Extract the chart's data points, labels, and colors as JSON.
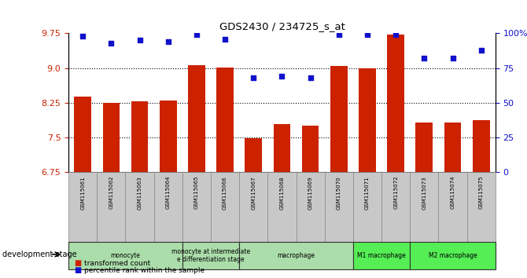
{
  "title": "GDS2430 / 234725_s_at",
  "samples": [
    "GSM115061",
    "GSM115062",
    "GSM115063",
    "GSM115064",
    "GSM115065",
    "GSM115066",
    "GSM115067",
    "GSM115068",
    "GSM115069",
    "GSM115070",
    "GSM115071",
    "GSM115072",
    "GSM115073",
    "GSM115074",
    "GSM115075"
  ],
  "bar_values": [
    8.38,
    8.25,
    8.28,
    8.3,
    9.07,
    9.02,
    7.48,
    7.8,
    7.75,
    9.05,
    9.0,
    9.72,
    7.82,
    7.82,
    7.88
  ],
  "dot_values": [
    98,
    93,
    95,
    94,
    99,
    96,
    68,
    69,
    68,
    99,
    99,
    99,
    82,
    82,
    88
  ],
  "ylim_left": [
    6.75,
    9.75
  ],
  "ylim_right": [
    0,
    100
  ],
  "yticks_left": [
    6.75,
    7.5,
    8.25,
    9.0,
    9.75
  ],
  "yticks_right": [
    0,
    25,
    50,
    75,
    100
  ],
  "ytick_labels_right": [
    "0",
    "25",
    "50",
    "75",
    "100%"
  ],
  "hgrid_values": [
    7.5,
    8.25,
    9.0
  ],
  "bar_color": "#CC2200",
  "dot_color": "#1111CC",
  "sample_box_color": "#C8C8C8",
  "group_defs": [
    {
      "label": "monocyte",
      "start": 0,
      "end": 3,
      "color": "#AADDAA"
    },
    {
      "label": "monocyte at intermediate\ne differentiation stage",
      "start": 4,
      "end": 5,
      "color": "#AADDAA"
    },
    {
      "label": "macrophage",
      "start": 6,
      "end": 9,
      "color": "#AADDAA"
    },
    {
      "label": "M1 macrophage",
      "start": 10,
      "end": 11,
      "color": "#55EE55"
    },
    {
      "label": "M2 macrophage",
      "start": 12,
      "end": 14,
      "color": "#55EE55"
    }
  ],
  "dev_stage_label": "development stage",
  "legend_bar_label": "transformed count",
  "legend_dot_label": "percentile rank within the sample"
}
